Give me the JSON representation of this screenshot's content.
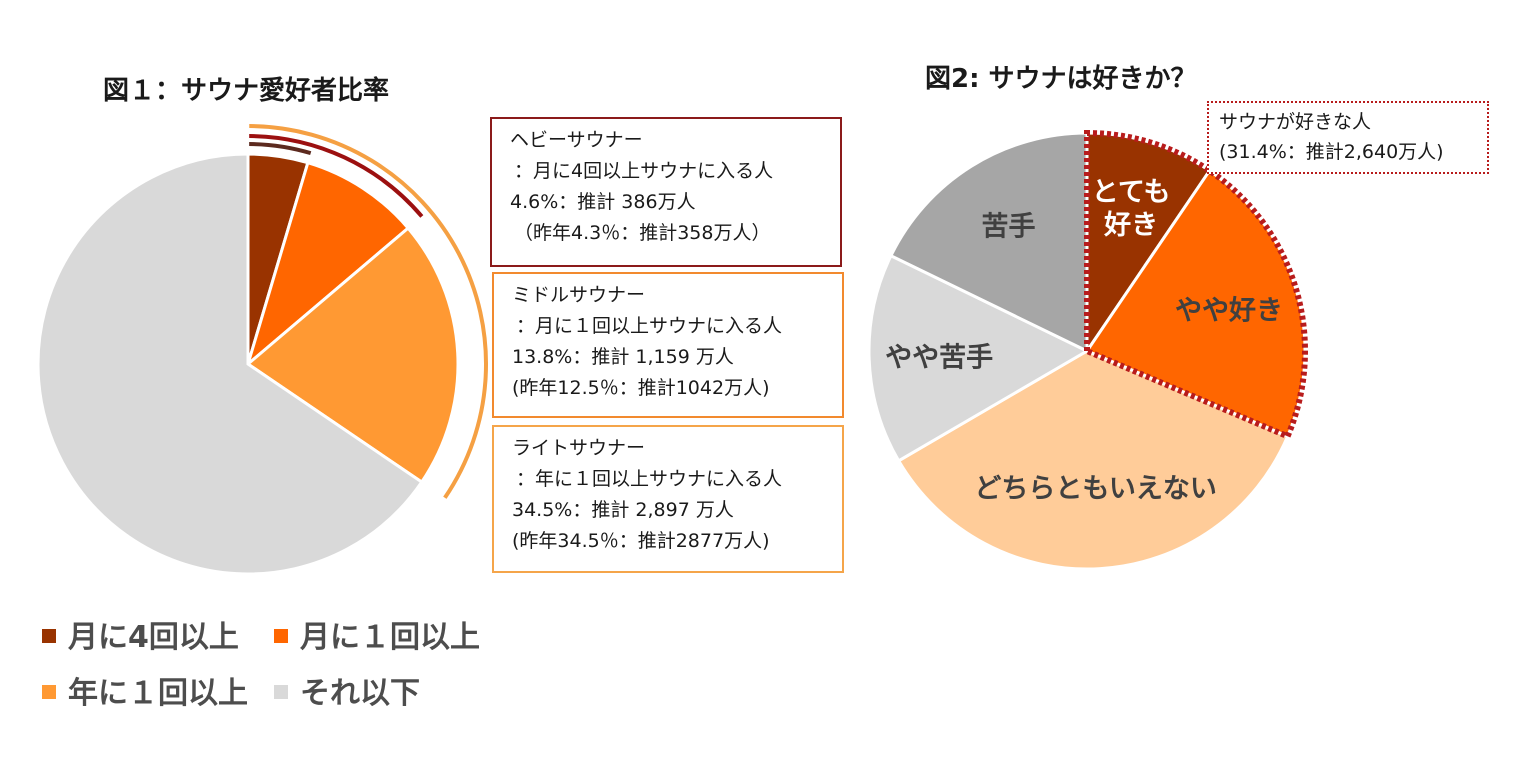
{
  "chart_data": [
    {
      "type": "pie",
      "title": "図１：サウナ愛好者比率",
      "categories": [
        "月に4回以上",
        "月に１回以上",
        "年に１回以上",
        "それ以下"
      ],
      "values": [
        4.6,
        9.2,
        20.7,
        65.5
      ],
      "colors": [
        "#993300",
        "#ff6600",
        "#ff9933",
        "#d9d9d9"
      ],
      "legend": [
        "月に4回以上",
        "月に１回以上",
        "年に１回以上",
        "それ以下"
      ],
      "legend_position": "bottom",
      "annotations": [
        {
          "lines": [
            "ヘビーサウナー",
            "：月に4回以上サウナに入る人",
            "4.6%：推計 386万人",
            "（昨年4.3％：推計358万人）"
          ],
          "color": "#8b1a1a"
        },
        {
          "lines": [
            "ミドルサウナー",
            "：月に１回以上サウナに入る人",
            "13.8%：推計 1,159 万人",
            "(昨年12.5％：推計1042万人)"
          ],
          "color": "#f28a2e"
        },
        {
          "lines": [
            "ライトサウナー",
            "：年に１回以上サウナに入る人",
            "34.5%：推計 2,897 万人",
            "(昨年34.5％：推計2877万人)"
          ],
          "color": "#f5a54a"
        }
      ]
    },
    {
      "type": "pie",
      "title": "図2: サウナは好きか？",
      "categories": [
        "とても好き",
        "やや好き",
        "どちらともいえない",
        "やや苦手",
        "苦手"
      ],
      "values": [
        9.5,
        21.9,
        35.2,
        15.6,
        17.8
      ],
      "colors": [
        "#993300",
        "#ff6600",
        "#ffcc99",
        "#d9d9d9",
        "#a6a6a6"
      ],
      "slice_labels": [
        [
          "とても",
          "好き"
        ],
        [
          "やや好き"
        ],
        [
          "どちらともいえない"
        ],
        [
          "やや苦手"
        ],
        [
          "苦手"
        ]
      ],
      "label_colors": [
        "#ffffff",
        "#404040",
        "#404040",
        "#404040",
        "#404040"
      ],
      "callout": [
        "サウナが好きな人",
        "(31.4%：推計2,640万人)"
      ]
    }
  ]
}
